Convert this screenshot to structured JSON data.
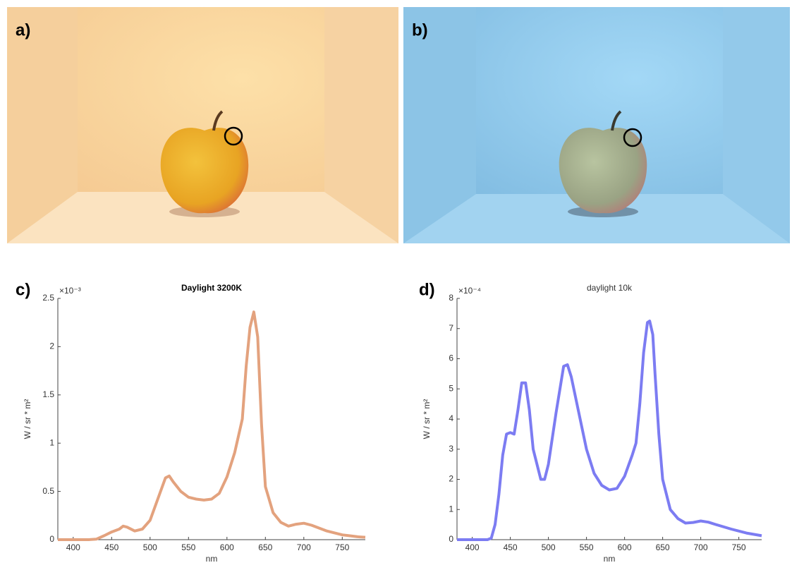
{
  "panel_labels": [
    "a)",
    "b)",
    "c)",
    "d)"
  ],
  "chart_data": [
    {
      "type": "line",
      "title": "Daylight 3200K",
      "title_bold": true,
      "xlabel": "nm",
      "ylabel": "W / sr * m²",
      "y_multiplier": "×10⁻³",
      "color": "#e3a27e",
      "x": [
        380,
        390,
        400,
        410,
        420,
        430,
        440,
        450,
        460,
        465,
        470,
        480,
        490,
        500,
        510,
        520,
        525,
        530,
        540,
        550,
        560,
        570,
        580,
        590,
        600,
        610,
        620,
        625,
        630,
        635,
        640,
        645,
        650,
        660,
        670,
        680,
        690,
        700,
        710,
        720,
        730,
        740,
        750,
        760,
        770,
        780
      ],
      "values": [
        0,
        0,
        0,
        0,
        0,
        0.005,
        0.04,
        0.08,
        0.11,
        0.14,
        0.13,
        0.09,
        0.11,
        0.2,
        0.42,
        0.64,
        0.66,
        0.6,
        0.5,
        0.44,
        0.42,
        0.41,
        0.42,
        0.48,
        0.65,
        0.9,
        1.25,
        1.8,
        2.2,
        2.36,
        2.1,
        1.2,
        0.55,
        0.28,
        0.18,
        0.14,
        0.16,
        0.17,
        0.15,
        0.12,
        0.09,
        0.07,
        0.05,
        0.04,
        0.03,
        0.025
      ],
      "xlim": [
        380,
        780
      ],
      "xticks": [
        400,
        450,
        500,
        550,
        600,
        650,
        700,
        750
      ],
      "ylim": [
        0,
        2.5
      ],
      "yticks": [
        0,
        0.5,
        1,
        1.5,
        2,
        2.5
      ]
    },
    {
      "type": "line",
      "title": "daylight 10k",
      "title_bold": false,
      "xlabel": "nm",
      "ylabel": "W / sr * m²",
      "y_multiplier": "×10⁻⁴",
      "color": "#7c7cf2",
      "x": [
        380,
        390,
        400,
        410,
        420,
        425,
        430,
        435,
        440,
        445,
        450,
        455,
        460,
        465,
        470,
        475,
        480,
        490,
        495,
        500,
        510,
        520,
        525,
        530,
        540,
        550,
        560,
        570,
        580,
        590,
        600,
        610,
        615,
        620,
        625,
        630,
        633,
        637,
        640,
        645,
        650,
        660,
        670,
        680,
        690,
        700,
        710,
        720,
        740,
        760,
        780
      ],
      "values": [
        0,
        0,
        0,
        0,
        0,
        0.05,
        0.5,
        1.5,
        2.8,
        3.5,
        3.55,
        3.5,
        4.3,
        5.2,
        5.2,
        4.3,
        3.0,
        2.0,
        2.0,
        2.5,
        4.2,
        5.75,
        5.8,
        5.4,
        4.2,
        3.0,
        2.2,
        1.8,
        1.65,
        1.7,
        2.1,
        2.8,
        3.2,
        4.5,
        6.2,
        7.2,
        7.25,
        6.8,
        5.5,
        3.5,
        2.0,
        1.0,
        0.7,
        0.55,
        0.57,
        0.62,
        0.58,
        0.5,
        0.35,
        0.22,
        0.13
      ],
      "xlim": [
        380,
        780
      ],
      "xticks": [
        400,
        450,
        500,
        550,
        600,
        650,
        700,
        750
      ],
      "ylim": [
        0,
        8
      ],
      "yticks": [
        0,
        1,
        2,
        3,
        4,
        5,
        6,
        7,
        8
      ]
    }
  ]
}
